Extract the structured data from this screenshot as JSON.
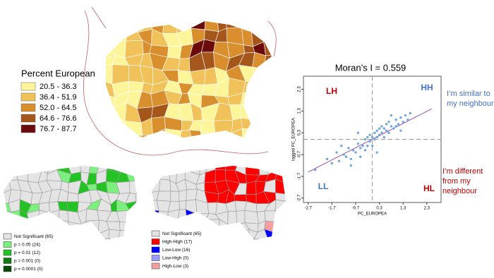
{
  "choropleth": {
    "legend_title": "Percent European",
    "classes": [
      {
        "label": "20.5 - 36.3",
        "color": "#fdf59a"
      },
      {
        "label": "36.4 - 51.9",
        "color": "#f2c25a"
      },
      {
        "label": "52.0 - 64.5",
        "color": "#d98f2e"
      },
      {
        "label": "64.6 - 76.6",
        "color": "#a4561b"
      },
      {
        "label": "76.7 - 87.7",
        "color": "#6b0b0b"
      }
    ]
  },
  "significance_map": {
    "classes": [
      {
        "label": "Not Significant (65)",
        "color": "#e4e4e4"
      },
      {
        "label": "p = 0.05 (24)",
        "color": "#7cf07c"
      },
      {
        "label": "p = 0.01 (12)",
        "color": "#22c322"
      },
      {
        "label": "p = 0.001 (0)",
        "color": "#127a12"
      },
      {
        "label": "p = 0.0001 (0)",
        "color": "#064a06"
      }
    ]
  },
  "cluster_map": {
    "classes": [
      {
        "label": "Not Significant (65)",
        "color": "#e4e4e4"
      },
      {
        "label": "High-High (17)",
        "color": "#ff0000"
      },
      {
        "label": "Low-Low (16)",
        "color": "#0000ff"
      },
      {
        "label": "Low-High (0)",
        "color": "#9a9aff"
      },
      {
        "label": "High-Low (3)",
        "color": "#f4a0a0"
      }
    ]
  },
  "chart_data": {
    "type": "scatter",
    "title": "Moran’s I = 0.559",
    "x_label": "PC_EUROPEA",
    "y_label": "lagged PC_EUROPEA",
    "xlim": [
      -2.9,
      2.9
    ],
    "ylim": [
      -2.9,
      2.9
    ],
    "xticks": [
      -2.7,
      -1.7,
      -0.7,
      0.3,
      1.3,
      2.3
    ],
    "yticks": [
      -2.7,
      -1.7,
      -0.7,
      0.3,
      1.3,
      2.3
    ],
    "color": "#6fa8dc",
    "x": [
      -2.4,
      -1.9,
      -1.7,
      -1.5,
      -1.4,
      -1.2,
      -1.1,
      -1.0,
      -0.9,
      -0.8,
      -0.7,
      -0.6,
      -0.5,
      -0.5,
      -0.4,
      -0.3,
      -0.3,
      -0.2,
      -0.2,
      -0.1,
      -0.1,
      0.0,
      0.0,
      0.1,
      0.1,
      0.2,
      0.2,
      0.3,
      0.3,
      0.4,
      0.4,
      0.5,
      0.5,
      0.6,
      0.6,
      0.7,
      0.7,
      0.8,
      0.9,
      1.0,
      1.0,
      1.1,
      1.2,
      1.3,
      1.4,
      1.5,
      1.6,
      -1.3,
      -0.9,
      0.8,
      1.2,
      -0.6,
      0.2
    ],
    "y": [
      -1.4,
      -0.9,
      -1.1,
      -0.6,
      -1.0,
      -0.7,
      -0.8,
      -0.4,
      -0.9,
      -0.5,
      -0.6,
      -0.2,
      -0.4,
      -0.8,
      -0.3,
      0.0,
      -0.5,
      0.1,
      -0.3,
      -0.1,
      0.2,
      0.1,
      -0.3,
      0.3,
      0.0,
      0.4,
      0.1,
      0.2,
      0.5,
      0.3,
      0.6,
      0.1,
      0.5,
      0.4,
      0.7,
      0.3,
      0.8,
      0.6,
      0.5,
      0.9,
      0.6,
      0.7,
      1.0,
      0.8,
      1.1,
      0.9,
      1.2,
      -0.3,
      -1.2,
      1.1,
      0.4,
      0.3,
      -0.6
    ],
    "trend_line": {
      "x": [
        -2.7,
        2.5
      ],
      "y": [
        -1.5,
        1.4
      ],
      "color": "#9b4fb0"
    },
    "x_reference": 0,
    "y_reference": 0,
    "annotations": [
      {
        "text": "LH",
        "color": "#c00000"
      },
      {
        "text": "HH",
        "color": "#4472c4"
      },
      {
        "text": "LL",
        "color": "#4472c4"
      },
      {
        "text": "HL",
        "color": "#c00000"
      }
    ],
    "notes": [
      {
        "lines": [
          "I’m similar to",
          "my neighbour"
        ],
        "color": "#4472c4"
      },
      {
        "lines": [
          "I’m different",
          "from my",
          "neighbour"
        ],
        "color": "#c00000"
      }
    ]
  }
}
